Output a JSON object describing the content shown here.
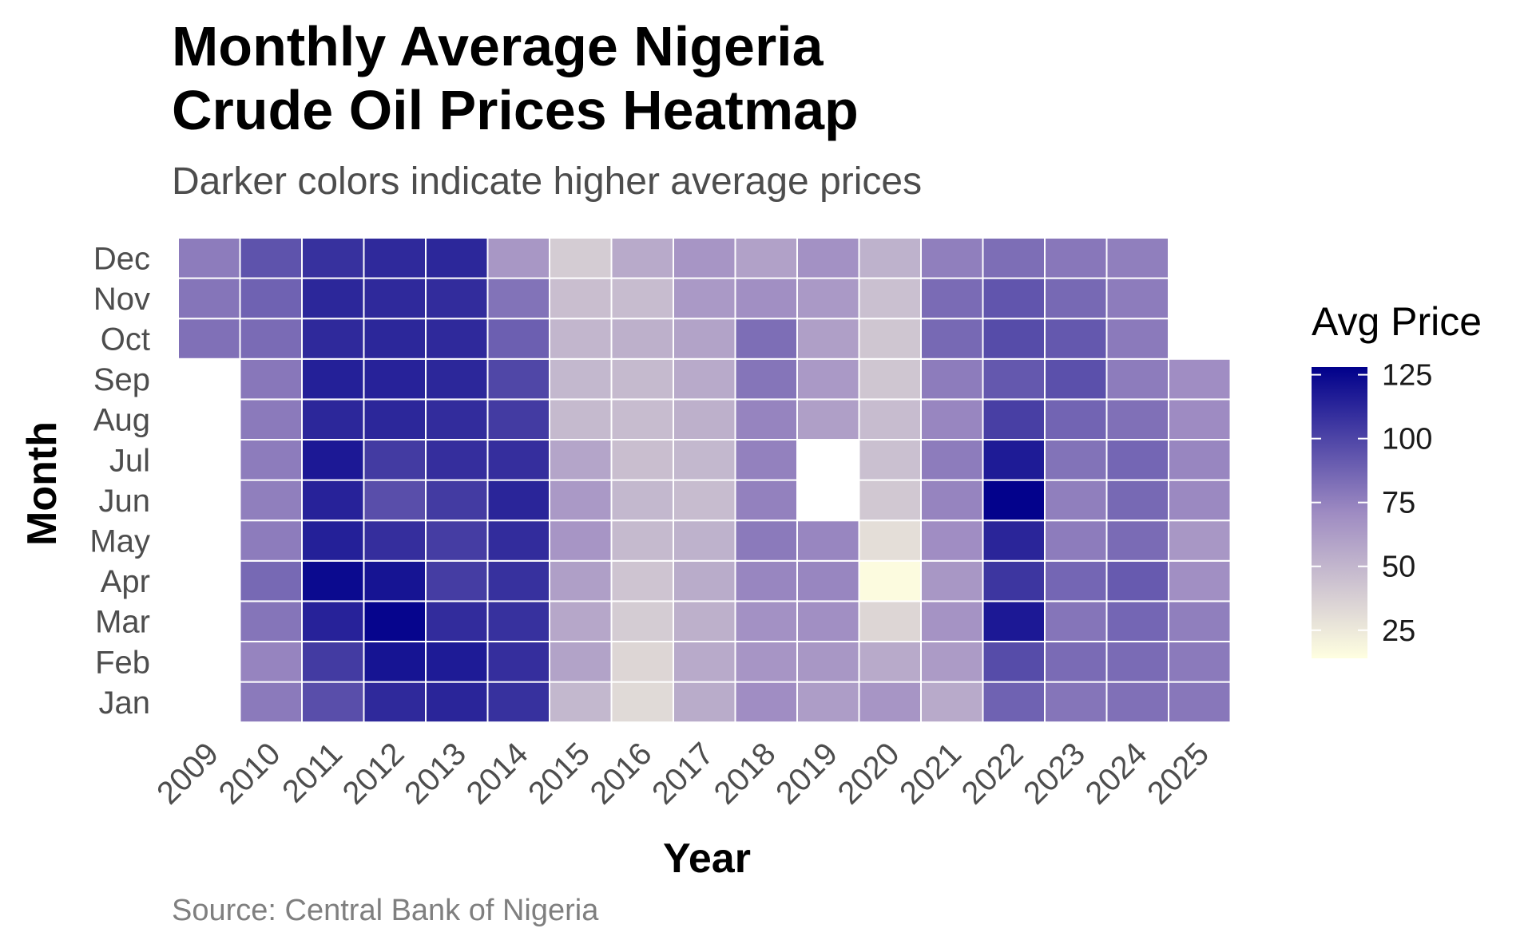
{
  "chart_data": {
    "type": "heatmap",
    "title": "Monthly Average Nigeria\nCrude Oil Prices Heatmap",
    "subtitle": "Darker colors indicate higher average prices",
    "caption": "Source: Central Bank of Nigeria",
    "xlabel": "Year",
    "ylabel": "Month",
    "x": [
      "2009",
      "2010",
      "2011",
      "2012",
      "2013",
      "2014",
      "2015",
      "2016",
      "2017",
      "2018",
      "2019",
      "2020",
      "2021",
      "2022",
      "2023",
      "2024",
      "2025"
    ],
    "y": [
      "Jan",
      "Feb",
      "Mar",
      "Apr",
      "May",
      "Jun",
      "Jul",
      "Aug",
      "Sep",
      "Oct",
      "Nov",
      "Dec"
    ],
    "values": [
      [
        null,
        78,
        96,
        111,
        113,
        108,
        49,
        32,
        55,
        70,
        62,
        66,
        56,
        88,
        80,
        82,
        79
      ],
      [
        null,
        74,
        104,
        120,
        117,
        109,
        59,
        34,
        56,
        66,
        65,
        56,
        63,
        97,
        84,
        84,
        78
      ],
      [
        null,
        80,
        114,
        126,
        110,
        108,
        57,
        39,
        53,
        68,
        69,
        34,
        67,
        118,
        80,
        86,
        76
      ],
      [
        null,
        85,
        124,
        120,
        103,
        108,
        61,
        43,
        55,
        73,
        73,
        16,
        65,
        106,
        86,
        91,
        69
      ],
      [
        null,
        77,
        115,
        109,
        103,
        110,
        66,
        48,
        52,
        78,
        73,
        30,
        70,
        113,
        77,
        84,
        65
      ],
      [
        null,
        76,
        114,
        96,
        104,
        113,
        64,
        49,
        47,
        75,
        null,
        41,
        74,
        127,
        76,
        85,
        72
      ],
      [
        null,
        77,
        118,
        104,
        109,
        109,
        58,
        46,
        49,
        75,
        null,
        45,
        77,
        117,
        81,
        86,
        73
      ],
      [
        null,
        78,
        112,
        112,
        110,
        104,
        48,
        47,
        53,
        74,
        61,
        47,
        73,
        102,
        87,
        82,
        71
      ],
      [
        null,
        79,
        115,
        114,
        112,
        99,
        49,
        48,
        56,
        80,
        64,
        42,
        77,
        92,
        95,
        77,
        70
      ],
      [
        82,
        84,
        111,
        112,
        111,
        89,
        50,
        53,
        59,
        83,
        61,
        42,
        85,
        97,
        92,
        78,
        null
      ],
      [
        80,
        88,
        112,
        111,
        110,
        81,
        46,
        47,
        64,
        69,
        64,
        45,
        84,
        93,
        85,
        77,
        null
      ],
      [
        77,
        94,
        108,
        111,
        112,
        65,
        39,
        56,
        66,
        60,
        68,
        52,
        76,
        83,
        79,
        76,
        null
      ]
    ],
    "color_scale": {
      "low": "#FFFFE0",
      "mid": "#9E8BC2",
      "high": "#00008B",
      "min": 14,
      "max": 128,
      "na_color": "#FFFFFF"
    },
    "legend": {
      "title": "Avg Price",
      "position": "right",
      "ticks": [
        25,
        50,
        75,
        100,
        125
      ]
    },
    "cell_border": "#FFFFFF"
  }
}
